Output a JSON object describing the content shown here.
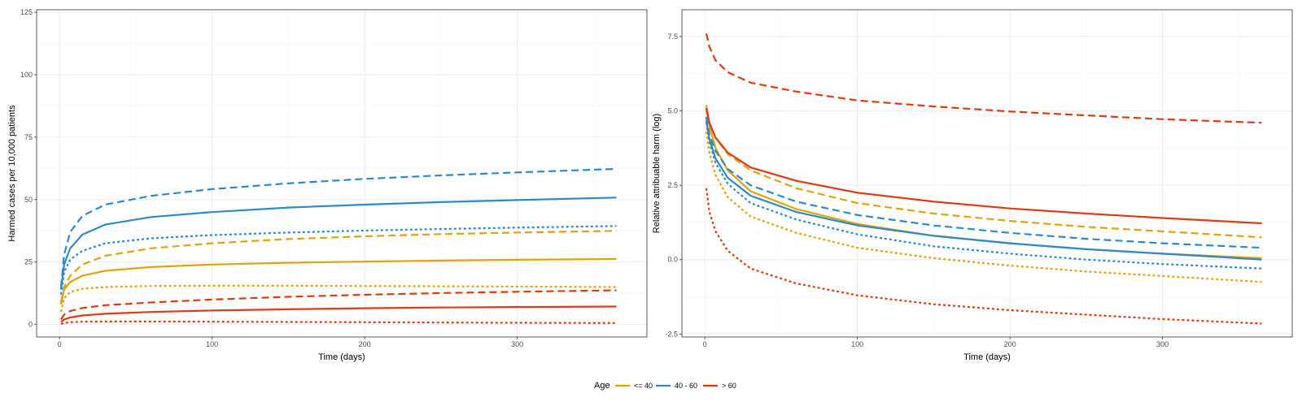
{
  "chart_data": [
    {
      "type": "line",
      "xlabel": "Time (days)",
      "ylabel": "Harmed cases per 10,000 patients",
      "xlim": [
        -15,
        385
      ],
      "ylim": [
        -5,
        126
      ],
      "xticks": [
        0,
        100,
        200,
        300
      ],
      "yticks": [
        0,
        25,
        50,
        75,
        100,
        125
      ],
      "grid": true,
      "series": [
        {
          "group": "<= 40",
          "linetype": "solid",
          "color": "#E0A40A",
          "x": [
            1,
            3,
            7,
            15,
            30,
            60,
            100,
            150,
            200,
            250,
            300,
            365
          ],
          "y": [
            8,
            14,
            17,
            19.5,
            21.5,
            23,
            24,
            24.7,
            25.2,
            25.6,
            25.9,
            26.2
          ]
        },
        {
          "group": "<= 40",
          "linetype": "dashed",
          "color": "#E0A40A",
          "x": [
            1,
            3,
            7,
            15,
            30,
            60,
            100,
            150,
            200,
            250,
            300,
            365
          ],
          "y": [
            9,
            15,
            19.5,
            24,
            27.5,
            30.5,
            32.5,
            34.2,
            35.3,
            36.2,
            36.8,
            37.5
          ]
        },
        {
          "group": "<= 40",
          "linetype": "dotted",
          "color": "#E0A40A",
          "x": [
            1,
            3,
            7,
            15,
            30,
            60,
            100,
            150,
            200,
            250,
            300,
            365
          ],
          "y": [
            5,
            10.5,
            13,
            14.3,
            15,
            15.4,
            15.5,
            15.5,
            15.4,
            15.3,
            15.2,
            15
          ]
        },
        {
          "group": "40 - 60",
          "linetype": "solid",
          "color": "#2B8ACB",
          "x": [
            1,
            3,
            7,
            15,
            30,
            60,
            100,
            150,
            200,
            250,
            300,
            365
          ],
          "y": [
            14,
            24,
            30.5,
            36,
            40,
            43,
            45,
            46.8,
            48,
            49,
            49.8,
            50.8
          ]
        },
        {
          "group": "40 - 60",
          "linetype": "dashed",
          "color": "#2B8ACB",
          "x": [
            1,
            3,
            7,
            15,
            30,
            60,
            100,
            150,
            200,
            250,
            300,
            365
          ],
          "y": [
            15,
            28,
            37,
            43.5,
            48,
            51.5,
            54.2,
            56.5,
            58.3,
            59.7,
            60.9,
            62.3
          ]
        },
        {
          "group": "40 - 60",
          "linetype": "dotted",
          "color": "#2B8ACB",
          "x": [
            1,
            3,
            7,
            15,
            30,
            60,
            100,
            150,
            200,
            250,
            300,
            365
          ],
          "y": [
            12,
            21,
            26,
            29.5,
            32.5,
            34.5,
            35.8,
            36.8,
            37.6,
            38.2,
            38.8,
            39.4
          ]
        },
        {
          "group": "> 60",
          "linetype": "solid",
          "color": "#E03A12",
          "x": [
            1,
            3,
            7,
            15,
            30,
            60,
            100,
            150,
            200,
            250,
            300,
            365
          ],
          "y": [
            1,
            2,
            2.8,
            3.6,
            4.3,
            5,
            5.6,
            6.1,
            6.5,
            6.8,
            7,
            7.2
          ]
        },
        {
          "group": "> 60",
          "linetype": "dashed",
          "color": "#E03A12",
          "x": [
            1,
            3,
            7,
            15,
            30,
            60,
            100,
            150,
            200,
            250,
            300,
            365
          ],
          "y": [
            2,
            4,
            5.4,
            6.6,
            7.7,
            8.8,
            10,
            11.1,
            11.9,
            12.6,
            13.1,
            13.7
          ]
        },
        {
          "group": "> 60",
          "linetype": "dotted",
          "color": "#E03A12",
          "x": [
            1,
            3,
            7,
            15,
            30,
            60,
            100,
            150,
            200,
            250,
            300,
            365
          ],
          "y": [
            0.2,
            0.6,
            0.9,
            1.1,
            1.2,
            1.2,
            1.1,
            1,
            0.9,
            0.8,
            0.7,
            0.6
          ]
        }
      ]
    },
    {
      "type": "line",
      "xlabel": "Time (days)",
      "ylabel": "Relative attribuable harm (log)",
      "xlim": [
        -15,
        385
      ],
      "ylim": [
        -2.6,
        8.4
      ],
      "xticks": [
        0,
        100,
        200,
        300
      ],
      "yticks": [
        -2.5,
        0.0,
        2.5,
        5.0,
        7.5
      ],
      "ytick_labels": [
        "-2.5",
        "0.0",
        "2.5",
        "5.0",
        "7.5"
      ],
      "grid": true,
      "series": [
        {
          "group": "<= 40",
          "linetype": "solid",
          "color": "#E0A40A",
          "x": [
            1,
            3,
            7,
            15,
            30,
            60,
            100,
            150,
            200,
            250,
            300,
            365
          ],
          "y": [
            5.2,
            4.5,
            3.75,
            3.0,
            2.3,
            1.7,
            1.2,
            0.8,
            0.55,
            0.35,
            0.2,
            0.05
          ]
        },
        {
          "group": "<= 40",
          "linetype": "dashed",
          "color": "#E0A40A",
          "x": [
            1,
            3,
            7,
            15,
            30,
            60,
            100,
            150,
            200,
            250,
            300,
            365
          ],
          "y": [
            5.0,
            4.6,
            4.1,
            3.55,
            3.0,
            2.4,
            1.9,
            1.55,
            1.3,
            1.1,
            0.95,
            0.75
          ]
        },
        {
          "group": "<= 40",
          "linetype": "dotted",
          "color": "#E0A40A",
          "x": [
            1,
            3,
            7,
            15,
            30,
            60,
            100,
            150,
            200,
            250,
            300,
            365
          ],
          "y": [
            4.3,
            3.6,
            2.85,
            2.1,
            1.45,
            0.9,
            0.4,
            0.05,
            -0.2,
            -0.4,
            -0.55,
            -0.75
          ]
        },
        {
          "group": "40 - 60",
          "linetype": "solid",
          "color": "#2B8ACB",
          "x": [
            1,
            3,
            7,
            15,
            30,
            60,
            100,
            150,
            200,
            250,
            300,
            365
          ],
          "y": [
            4.7,
            4.05,
            3.4,
            2.75,
            2.15,
            1.6,
            1.15,
            0.8,
            0.55,
            0.35,
            0.2,
            0.0
          ]
        },
        {
          "group": "40 - 60",
          "linetype": "dashed",
          "color": "#2B8ACB",
          "x": [
            1,
            3,
            7,
            15,
            30,
            60,
            100,
            150,
            200,
            250,
            300,
            365
          ],
          "y": [
            4.8,
            4.2,
            3.65,
            3.05,
            2.5,
            1.95,
            1.5,
            1.15,
            0.9,
            0.7,
            0.55,
            0.4
          ]
        },
        {
          "group": "40 - 60",
          "linetype": "dotted",
          "color": "#2B8ACB",
          "x": [
            1,
            3,
            7,
            15,
            30,
            60,
            100,
            150,
            200,
            250,
            300,
            365
          ],
          "y": [
            4.6,
            3.95,
            3.25,
            2.55,
            1.9,
            1.35,
            0.85,
            0.45,
            0.2,
            0.0,
            -0.15,
            -0.3
          ]
        },
        {
          "group": "> 60",
          "linetype": "solid",
          "color": "#E03A12",
          "x": [
            1,
            3,
            7,
            15,
            30,
            60,
            100,
            150,
            200,
            250,
            300,
            365
          ],
          "y": [
            5.1,
            4.6,
            4.1,
            3.6,
            3.1,
            2.65,
            2.25,
            1.95,
            1.72,
            1.55,
            1.4,
            1.22
          ]
        },
        {
          "group": "> 60",
          "linetype": "dashed",
          "color": "#E03A12",
          "x": [
            1,
            3,
            7,
            15,
            30,
            60,
            100,
            150,
            200,
            250,
            300,
            365
          ],
          "y": [
            7.6,
            7.15,
            6.7,
            6.3,
            5.95,
            5.65,
            5.35,
            5.15,
            4.98,
            4.85,
            4.72,
            4.6
          ]
        },
        {
          "group": "> 60",
          "linetype": "dotted",
          "color": "#E03A12",
          "x": [
            1,
            3,
            7,
            15,
            30,
            60,
            100,
            150,
            200,
            250,
            300,
            365
          ],
          "y": [
            2.4,
            1.6,
            0.95,
            0.3,
            -0.3,
            -0.8,
            -1.2,
            -1.5,
            -1.7,
            -1.85,
            -2.0,
            -2.15
          ]
        }
      ]
    }
  ],
  "legend": {
    "title": "Age",
    "position": "bottom",
    "items": [
      {
        "label": "<= 40",
        "color": "#E0A40A"
      },
      {
        "label": "40 - 60",
        "color": "#2B8ACB"
      },
      {
        "label": "> 60",
        "color": "#E03A12"
      }
    ]
  }
}
